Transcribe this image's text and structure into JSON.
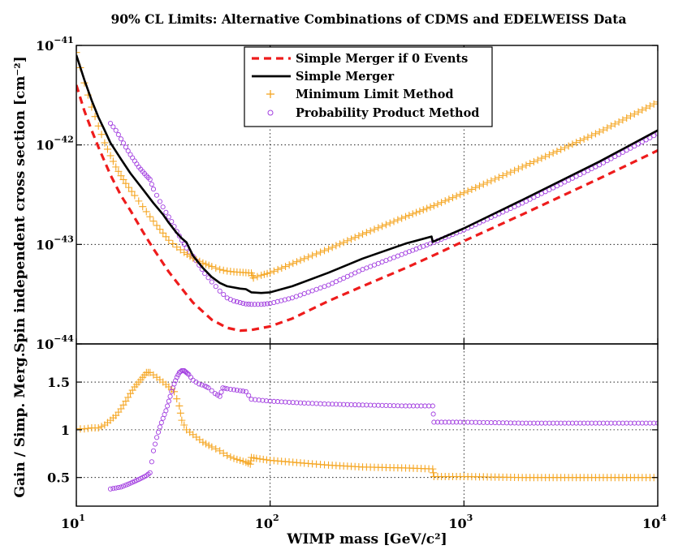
{
  "chart_data": [
    {
      "type": "line",
      "title": "90% CL Limits: Alternative Combinations of CDMS and EDELWEISS Data",
      "xlabel": "WIMP mass [GeV/c²]",
      "ylabel": "Spin independent cross section [cm⁻²]",
      "xscale": "log",
      "yscale": "log",
      "xlim": [
        10,
        10000
      ],
      "ylim": [
        1e-44,
        1e-41
      ],
      "grid": true,
      "legend_position": "top-center",
      "x_ticks": [
        {
          "value": 10,
          "label": "10",
          "exp": "1"
        },
        {
          "value": 100,
          "label": "10",
          "exp": "2"
        },
        {
          "value": 1000,
          "label": "10",
          "exp": "3"
        },
        {
          "value": 10000,
          "label": "10",
          "exp": "4"
        }
      ],
      "y_ticks": [
        {
          "value": 1e-44,
          "label": "10",
          "exp": "−44"
        },
        {
          "value": 1e-43,
          "label": "10",
          "exp": "−43"
        },
        {
          "value": 1e-42,
          "label": "10",
          "exp": "−42"
        },
        {
          "value": 1e-41,
          "label": "10",
          "exp": "−41"
        }
      ],
      "series": [
        {
          "name": "Simple Merger if 0 Events",
          "style": "dashed",
          "color": "#ee1c1c",
          "x": [
            10,
            11,
            12,
            13,
            14,
            15,
            17,
            19,
            22,
            25,
            30,
            35,
            40,
            50,
            60,
            70,
            80,
            100,
            130,
            200,
            300,
            500,
            700,
            1000,
            2000,
            5000,
            10000
          ],
          "y": [
            4e-42,
            2.2e-42,
            1.4e-42,
            9.5e-43,
            6.8e-43,
            5e-43,
            3.1e-43,
            2.2e-43,
            1.35e-43,
            9e-44,
            5.3e-44,
            3.6e-44,
            2.6e-44,
            1.75e-44,
            1.45e-44,
            1.36e-44,
            1.38e-44,
            1.5e-44,
            1.8e-44,
            2.7e-44,
            3.8e-44,
            5.8e-44,
            7.8e-44,
            1.08e-43,
            2e-43,
            4.6e-43,
            8.8e-43
          ]
        },
        {
          "name": "Simple Merger",
          "style": "solid",
          "color": "#000000",
          "x": [
            10,
            11,
            12,
            13,
            14,
            15,
            17,
            19,
            22,
            25,
            28,
            30,
            33,
            35,
            37,
            40,
            45,
            50,
            55,
            60,
            70,
            75,
            80,
            90,
            100,
            130,
            200,
            300,
            500,
            680,
            690,
            1000,
            2000,
            5000,
            10000
          ],
          "y": [
            8e-42,
            4.5e-42,
            2.8e-42,
            1.9e-42,
            1.4e-42,
            1.05e-42,
            7.2e-43,
            5.2e-43,
            3.6e-43,
            2.6e-43,
            2e-43,
            1.65e-43,
            1.3e-43,
            1.15e-43,
            1.05e-43,
            7.7e-44,
            5.8e-44,
            4.7e-44,
            4.1e-44,
            3.8e-44,
            3.6e-44,
            3.55e-44,
            3.3e-44,
            3.25e-44,
            3.3e-44,
            3.8e-44,
            5.2e-44,
            7.2e-44,
            1.02e-43,
            1.2e-43,
            1.06e-43,
            1.45e-43,
            2.8e-43,
            6.8e-43,
            1.4e-42
          ]
        },
        {
          "name": "Minimum Limit Method",
          "style": "plus",
          "color": "#f5a623",
          "x": [
            10,
            11,
            12,
            13,
            14,
            15,
            16,
            17,
            18,
            20,
            22,
            24,
            26,
            28,
            30,
            33,
            36,
            40,
            45,
            50,
            55,
            60,
            65,
            70,
            75,
            80,
            82,
            90,
            100,
            120,
            150,
            200,
            300,
            500,
            700,
            1000,
            2000,
            5000,
            10000
          ],
          "y": [
            8.5e-42,
            4.2e-42,
            2.4e-42,
            1.55e-42,
            1.05e-42,
            7.8e-43,
            6e-43,
            4.9e-43,
            4.1e-43,
            3.1e-43,
            2.4e-43,
            1.9e-43,
            1.55e-43,
            1.3e-43,
            1.1e-43,
            9.4e-44,
            8.3e-44,
            7.3e-44,
            6.5e-44,
            6e-44,
            5.6e-44,
            5.4e-44,
            5.3e-44,
            5.25e-44,
            5.2e-44,
            5.15e-44,
            4.6e-44,
            4.9e-44,
            5.2e-44,
            6e-44,
            7.2e-44,
            9e-44,
            1.27e-43,
            1.9e-43,
            2.45e-43,
            3.3e-43,
            6e-43,
            1.35e-42,
            2.7e-42
          ]
        },
        {
          "name": "Probability Product Method",
          "style": "circle",
          "color": "#a23ee0",
          "x": [
            15,
            16,
            17,
            18,
            19,
            20,
            21,
            22,
            23,
            24,
            25,
            27,
            29,
            31,
            33,
            35,
            37,
            40,
            43,
            46,
            50,
            55,
            60,
            65,
            70,
            75,
            80,
            90,
            100,
            130,
            200,
            300,
            500,
            700,
            1000,
            2000,
            5000,
            10000
          ],
          "y": [
            1.65e-42,
            1.4e-42,
            1.15e-42,
            9.5e-43,
            8e-43,
            6.9e-43,
            6e-43,
            5.4e-43,
            4.9e-43,
            4.5e-43,
            3.6e-43,
            2.7e-43,
            2.1e-43,
            1.7e-43,
            1.35e-43,
            1.1e-43,
            9.2e-44,
            7.6e-44,
            6.2e-44,
            5.1e-44,
            4.2e-44,
            3.4e-44,
            2.9e-44,
            2.7e-44,
            2.6e-44,
            2.52e-44,
            2.5e-44,
            2.5e-44,
            2.55e-44,
            2.9e-44,
            3.9e-44,
            5.6e-44,
            8.2e-44,
            1.05e-43,
            1.4e-43,
            2.6e-43,
            6.3e-43,
            1.3e-42
          ]
        }
      ]
    },
    {
      "type": "scatter",
      "xlabel": "WIMP mass [GeV/c²]",
      "ylabel": "Gain / Simp. Merg.",
      "xscale": "log",
      "yscale": "linear",
      "xlim": [
        10,
        10000
      ],
      "ylim": [
        0.2,
        1.9
      ],
      "grid": true,
      "y_ticks": [
        {
          "value": 0.5,
          "label": "0.5"
        },
        {
          "value": 1,
          "label": "1"
        },
        {
          "value": 1.5,
          "label": "1.5"
        }
      ],
      "series": [
        {
          "name": "Minimum Limit Method",
          "style": "plus",
          "color": "#f5a623",
          "x": [
            10,
            11,
            12,
            13,
            14,
            15,
            16,
            17,
            18,
            19,
            20,
            21,
            22,
            23,
            24,
            26,
            28,
            30,
            32,
            34,
            35,
            37,
            40,
            45,
            50,
            55,
            60,
            65,
            70,
            75,
            79,
            80,
            85,
            100,
            150,
            200,
            300,
            500,
            690,
            700,
            1000,
            2000,
            5000,
            10000
          ],
          "y": [
            1.01,
            1.01,
            1.02,
            1.02,
            1.05,
            1.1,
            1.15,
            1.22,
            1.3,
            1.38,
            1.45,
            1.5,
            1.55,
            1.6,
            1.6,
            1.55,
            1.5,
            1.45,
            1.4,
            1.25,
            1.1,
            1.0,
            0.95,
            0.87,
            0.82,
            0.78,
            0.73,
            0.7,
            0.68,
            0.66,
            0.64,
            0.71,
            0.7,
            0.68,
            0.65,
            0.63,
            0.61,
            0.6,
            0.59,
            0.51,
            0.51,
            0.5,
            0.5,
            0.5
          ]
        },
        {
          "name": "Probability Product Method",
          "style": "circle",
          "color": "#a23ee0",
          "x": [
            15,
            16,
            17,
            18,
            19,
            20,
            21,
            22,
            23,
            24,
            25,
            26,
            27,
            28,
            29,
            30,
            31,
            32,
            33,
            34,
            35,
            36,
            37,
            38,
            40,
            43,
            46,
            48,
            52,
            55,
            57,
            60,
            65,
            70,
            75,
            80,
            100,
            150,
            200,
            300,
            500,
            690,
            700,
            1000,
            2000,
            5000,
            10000
          ],
          "y": [
            0.38,
            0.39,
            0.4,
            0.42,
            0.44,
            0.46,
            0.48,
            0.5,
            0.52,
            0.55,
            0.78,
            0.92,
            1.03,
            1.12,
            1.2,
            1.3,
            1.4,
            1.48,
            1.55,
            1.6,
            1.62,
            1.62,
            1.6,
            1.58,
            1.52,
            1.48,
            1.46,
            1.44,
            1.38,
            1.35,
            1.44,
            1.43,
            1.42,
            1.41,
            1.4,
            1.32,
            1.3,
            1.28,
            1.27,
            1.26,
            1.25,
            1.25,
            1.08,
            1.08,
            1.07,
            1.07,
            1.07
          ]
        }
      ]
    }
  ]
}
